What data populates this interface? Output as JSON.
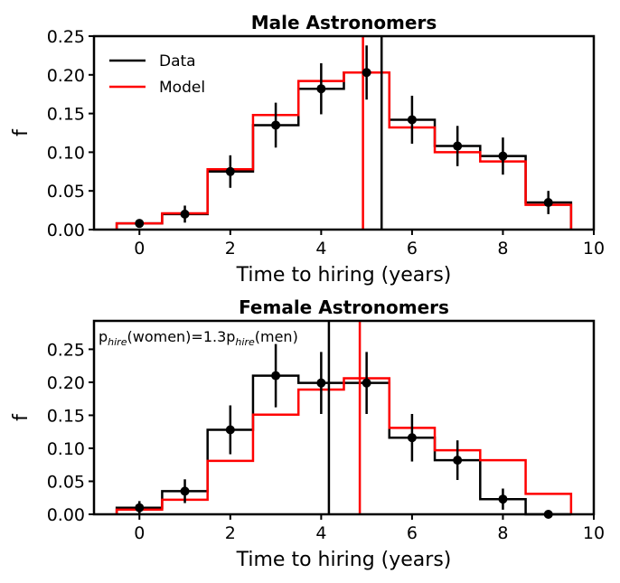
{
  "chart_data": [
    {
      "type": "histogram",
      "title": "Male Astronomers",
      "xlabel": "Time to hiring (years)",
      "ylabel": "f",
      "xlim": [
        -1,
        10
      ],
      "ylim": [
        0,
        0.25
      ],
      "xticks": [
        0,
        2,
        4,
        6,
        8,
        10
      ],
      "yticks": [
        "0.00",
        "0.05",
        "0.10",
        "0.15",
        "0.20",
        "0.25"
      ],
      "bin_edges": [
        -0.5,
        0.5,
        1.5,
        2.5,
        3.5,
        4.5,
        5.5,
        6.5,
        7.5,
        8.5,
        9.5
      ],
      "series": [
        {
          "name": "Data",
          "color": "#000000",
          "values": [
            0.008,
            0.02,
            0.075,
            0.135,
            0.182,
            0.203,
            0.142,
            0.108,
            0.095,
            0.035
          ],
          "vline": 5.33
        },
        {
          "name": "Model",
          "color": "#ff0000",
          "values": [
            0.008,
            0.021,
            0.078,
            0.148,
            0.192,
            0.203,
            0.132,
            0.1,
            0.088,
            0.032
          ],
          "vline": 4.92
        }
      ],
      "points": {
        "x": [
          0,
          1,
          2,
          3,
          4,
          5,
          6,
          7,
          8,
          9
        ],
        "y": [
          0.008,
          0.02,
          0.075,
          0.135,
          0.182,
          0.203,
          0.142,
          0.108,
          0.095,
          0.035
        ],
        "yerr": [
          0.004,
          0.011,
          0.021,
          0.029,
          0.033,
          0.035,
          0.031,
          0.026,
          0.024,
          0.015
        ]
      },
      "legend": "top-left"
    },
    {
      "type": "histogram",
      "title": "Female Astronomers",
      "xlabel": "Time to hiring (years)",
      "ylabel": "f",
      "xlim": [
        -1,
        10
      ],
      "ylim": [
        0,
        0.293
      ],
      "xticks": [
        0,
        2,
        4,
        6,
        8,
        10
      ],
      "yticks": [
        "0.00",
        "0.05",
        "0.10",
        "0.15",
        "0.20",
        "0.25"
      ],
      "bin_edges": [
        -0.5,
        0.5,
        1.5,
        2.5,
        3.5,
        4.5,
        5.5,
        6.5,
        7.5,
        8.5,
        9.5
      ],
      "series": [
        {
          "name": "Data",
          "color": "#000000",
          "values": [
            0.01,
            0.035,
            0.128,
            0.21,
            0.199,
            0.199,
            0.116,
            0.082,
            0.023,
            0.0
          ],
          "vline": 4.17
        },
        {
          "name": "Model",
          "color": "#ff0000",
          "values": [
            0.007,
            0.022,
            0.081,
            0.151,
            0.189,
            0.206,
            0.131,
            0.097,
            0.082,
            0.031
          ],
          "vline": 4.85
        }
      ],
      "points": {
        "x": [
          0,
          1,
          2,
          3,
          4,
          5,
          6,
          7,
          8,
          9
        ],
        "y": [
          0.01,
          0.035,
          0.128,
          0.21,
          0.199,
          0.199,
          0.116,
          0.082,
          0.023,
          0.0
        ],
        "yerr": [
          0.01,
          0.018,
          0.037,
          0.048,
          0.047,
          0.047,
          0.036,
          0.03,
          0.016,
          0.0
        ]
      },
      "annotation": {
        "prefix": "p",
        "sub1": "hire",
        "mid": "(women)=1.3p",
        "sub2": "hire",
        "suffix": "(men)"
      }
    }
  ]
}
